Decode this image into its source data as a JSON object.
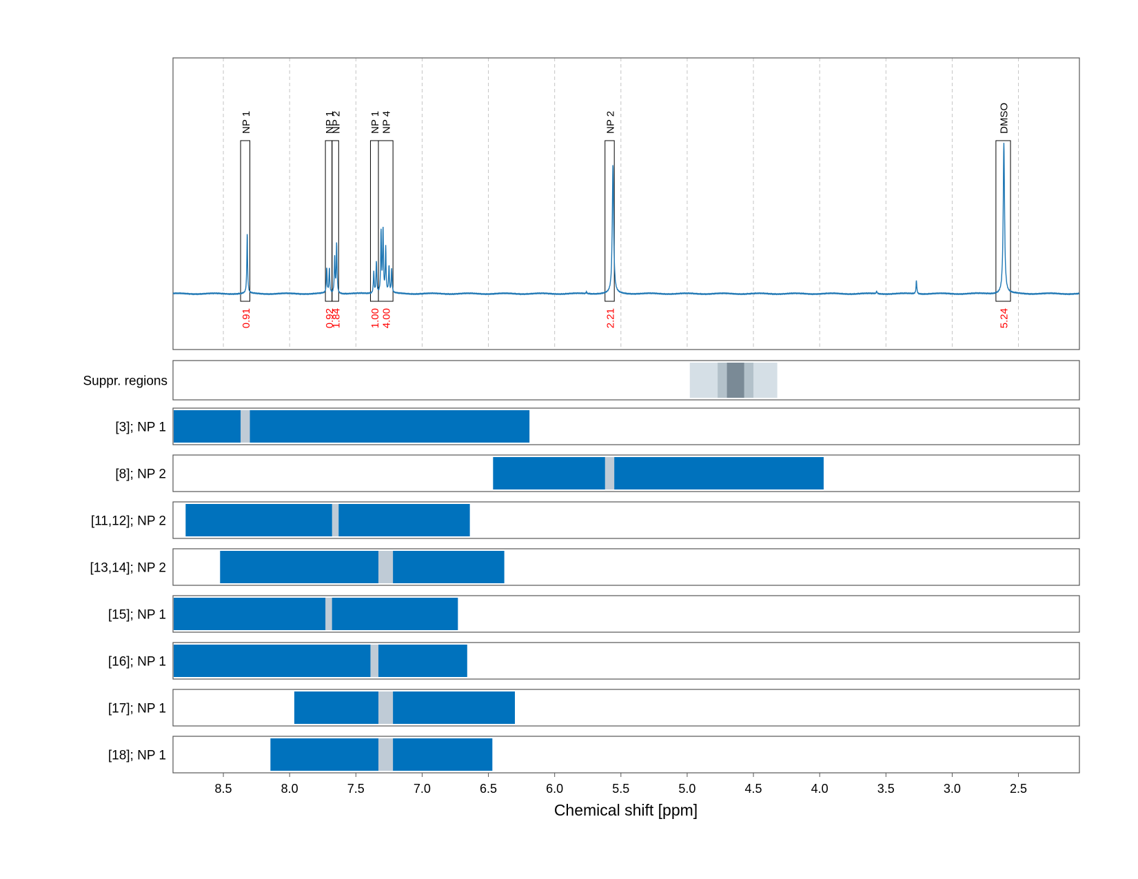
{
  "chart_data": {
    "type": "line",
    "xlabel": "Chemical shift [ppm]",
    "xlim": [
      8.88,
      2.04
    ],
    "x_ticks": [
      "8.5",
      "8.0",
      "7.5",
      "7.0",
      "6.5",
      "6.0",
      "5.5",
      "5.0",
      "4.5",
      "4.0",
      "3.5",
      "3.0",
      "2.5"
    ],
    "x_tick_values": [
      8.5,
      8.0,
      7.5,
      7.0,
      6.5,
      6.0,
      5.5,
      5.0,
      4.5,
      4.0,
      3.5,
      3.0,
      2.5
    ],
    "grid": "vertical-dashed",
    "colors": {
      "spectrum": "#1f77b4",
      "bar": "#0072bd",
      "marker": "#bfcbd6",
      "integral": "#ff0000",
      "suppr_light": "#d5dfe6",
      "suppr_mid": "#b3c1ca",
      "suppr_dark": "#7a8a96"
    },
    "spectrum": {
      "baseline_ppm": [
        8.88,
        2.04
      ],
      "peaks": [
        {
          "ppm": 8.32,
          "height": 0.36
        },
        {
          "ppm": 7.72,
          "height": 0.15
        },
        {
          "ppm": 7.7,
          "height": 0.15
        },
        {
          "ppm": 7.66,
          "height": 0.22
        },
        {
          "ppm": 7.645,
          "height": 0.3
        },
        {
          "ppm": 7.365,
          "height": 0.13
        },
        {
          "ppm": 7.345,
          "height": 0.19
        },
        {
          "ppm": 7.31,
          "height": 0.37
        },
        {
          "ppm": 7.295,
          "height": 0.38
        },
        {
          "ppm": 7.275,
          "height": 0.27
        },
        {
          "ppm": 7.25,
          "height": 0.16
        },
        {
          "ppm": 7.23,
          "height": 0.14
        },
        {
          "ppm": 5.76,
          "height": 0.01
        },
        {
          "ppm": 5.56,
          "height": 0.77
        },
        {
          "ppm": 3.57,
          "height": 0.015
        },
        {
          "ppm": 3.27,
          "height": 0.08
        },
        {
          "ppm": 2.61,
          "height": 0.9
        }
      ]
    },
    "integrations": [
      {
        "label": "NP 1",
        "value": "0.91",
        "from": 8.37,
        "to": 8.3
      },
      {
        "label": "NP 1",
        "value": "0.92",
        "from": 7.73,
        "to": 7.68
      },
      {
        "label": "NP 2",
        "value": "1.84",
        "from": 7.68,
        "to": 7.63
      },
      {
        "label": "NP 1",
        "value": "1.00",
        "from": 7.39,
        "to": 7.33
      },
      {
        "label": "NP 4",
        "value": "4.00",
        "from": 7.33,
        "to": 7.22
      },
      {
        "label": "NP 2",
        "value": "2.21",
        "from": 5.62,
        "to": 5.55
      },
      {
        "label": "DMSO",
        "value": "5.24",
        "from": 2.67,
        "to": 2.56
      }
    ],
    "suppression": {
      "label": "Suppr. regions",
      "bands": [
        {
          "from": 4.98,
          "to": 4.32,
          "level": "light"
        },
        {
          "from": 4.77,
          "to": 4.5,
          "level": "mid"
        },
        {
          "from": 4.7,
          "to": 4.57,
          "level": "dark"
        }
      ]
    },
    "rows": [
      {
        "label": "[3]; NP 1",
        "bar": [
          8.88,
          6.19
        ],
        "marker": [
          8.37,
          8.3
        ]
      },
      {
        "label": "[8]; NP 2",
        "bar": [
          6.47,
          3.97
        ],
        "marker": [
          5.62,
          5.55
        ]
      },
      {
        "label": "[11,12]; NP 2",
        "bar": [
          8.79,
          6.64
        ],
        "marker": [
          7.68,
          7.63
        ]
      },
      {
        "label": "[13,14]; NP 2",
        "bar": [
          8.53,
          6.38
        ],
        "marker": [
          7.33,
          7.22
        ]
      },
      {
        "label": "[15]; NP 1",
        "bar": [
          8.88,
          6.73
        ],
        "marker": [
          7.73,
          7.68
        ]
      },
      {
        "label": "[16]; NP 1",
        "bar": [
          8.88,
          6.66
        ],
        "marker": [
          7.39,
          7.33
        ]
      },
      {
        "label": "[17]; NP 1",
        "bar": [
          7.97,
          6.3
        ],
        "marker": [
          7.33,
          7.22
        ]
      },
      {
        "label": "[18]; NP 1",
        "bar": [
          8.15,
          6.47
        ],
        "marker": [
          7.33,
          7.22
        ]
      }
    ]
  }
}
